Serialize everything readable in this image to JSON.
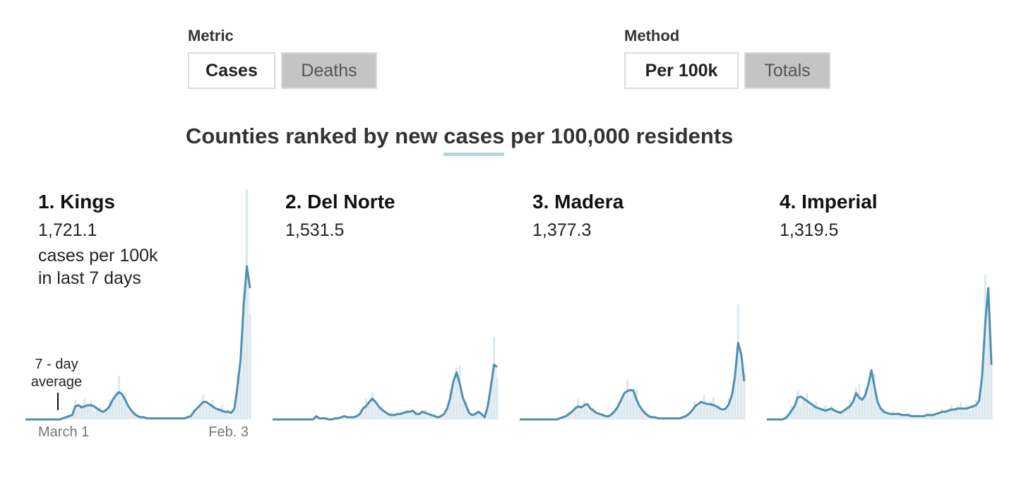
{
  "controls": {
    "metric": {
      "label": "Metric",
      "options": [
        {
          "label": "Cases",
          "active": true
        },
        {
          "label": "Deaths",
          "active": false
        }
      ]
    },
    "method": {
      "label": "Method",
      "options": [
        {
          "label": "Per 100k",
          "active": true
        },
        {
          "label": "Totals",
          "active": false
        }
      ]
    }
  },
  "headline": {
    "prefix": "Counties ranked by new",
    "metric_word": "cases",
    "suffix": "per 100,000 residents"
  },
  "annotation": {
    "line1": "7 - day",
    "line2": "average"
  },
  "colors": {
    "line": "#4f8faf",
    "bars": "#dbe8ee"
  },
  "chart_data": [
    {
      "type": "line",
      "title": "1. Kings",
      "value_label": "1,721.1",
      "unit_line1": "cases per 100k",
      "unit_line2": "in last 7 days",
      "x_tick_labels": [
        "March 1",
        "Feb. 3"
      ],
      "y_values": [
        0,
        0,
        0,
        0,
        0,
        0,
        0,
        0,
        0,
        0,
        0,
        0,
        1,
        2,
        3,
        4,
        12,
        13,
        11,
        12,
        13,
        13,
        12,
        10,
        8,
        7,
        9,
        12,
        18,
        22,
        25,
        23,
        18,
        12,
        8,
        5,
        3,
        2,
        2,
        1,
        1,
        1,
        1,
        1,
        1,
        1,
        1,
        1,
        1,
        1,
        1,
        1,
        2,
        3,
        7,
        10,
        13,
        16,
        16,
        14,
        12,
        10,
        9,
        8,
        7,
        7,
        6,
        10,
        30,
        55,
        105,
        140,
        120
      ]
    },
    {
      "type": "line",
      "title": "2. Del Norte",
      "value_label": "1,531.5",
      "y_values": [
        0,
        0,
        0,
        0,
        0,
        0,
        0,
        0,
        0,
        0,
        0,
        0,
        0,
        0,
        3,
        1,
        1,
        1,
        0,
        0,
        1,
        1,
        2,
        3,
        2,
        2,
        2,
        3,
        5,
        10,
        12,
        16,
        19,
        16,
        12,
        9,
        7,
        5,
        4,
        4,
        5,
        5,
        6,
        7,
        7,
        8,
        5,
        5,
        7,
        6,
        5,
        4,
        3,
        2,
        3,
        5,
        10,
        20,
        35,
        43,
        33,
        20,
        13,
        6,
        4,
        5,
        7,
        5,
        2,
        12,
        30,
        50,
        48
      ]
    },
    {
      "type": "line",
      "title": "3. Madera",
      "value_label": "1,377.3",
      "y_values": [
        0,
        0,
        0,
        0,
        0,
        0,
        0,
        0,
        0,
        0,
        0,
        0,
        0,
        1,
        2,
        3,
        5,
        7,
        10,
        12,
        11,
        13,
        14,
        10,
        8,
        6,
        5,
        4,
        3,
        3,
        5,
        8,
        12,
        18,
        24,
        26,
        27,
        26,
        18,
        12,
        8,
        5,
        3,
        2,
        2,
        1,
        1,
        1,
        1,
        1,
        1,
        1,
        1,
        2,
        3,
        5,
        8,
        12,
        14,
        16,
        15,
        14,
        14,
        13,
        12,
        10,
        9,
        10,
        14,
        22,
        40,
        70,
        60,
        35
      ]
    },
    {
      "type": "line",
      "title": "4. Imperial",
      "value_label": "1,319.5",
      "y_values": [
        0,
        0,
        0,
        0,
        0,
        0,
        1,
        4,
        8,
        12,
        20,
        21,
        19,
        17,
        15,
        13,
        11,
        10,
        9,
        8,
        9,
        10,
        8,
        7,
        6,
        8,
        10,
        12,
        16,
        24,
        20,
        18,
        22,
        32,
        45,
        30,
        16,
        10,
        7,
        6,
        5,
        5,
        5,
        5,
        4,
        4,
        4,
        3,
        3,
        3,
        3,
        3,
        4,
        4,
        4,
        5,
        6,
        7,
        7,
        8,
        9,
        9,
        10,
        10,
        10,
        10,
        11,
        12,
        13,
        17,
        40,
        88,
        120,
        50
      ]
    }
  ]
}
